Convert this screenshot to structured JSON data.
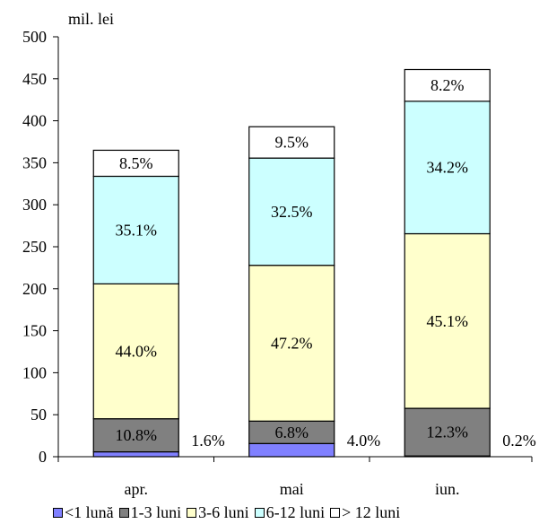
{
  "chart_data": {
    "type": "bar",
    "stacked": true,
    "unit_label": "mil. lei",
    "categories": [
      "apr.",
      "mai",
      "iun."
    ],
    "ylim": [
      0,
      500
    ],
    "yticks": [
      0,
      50,
      100,
      150,
      200,
      250,
      300,
      350,
      400,
      450,
      500
    ],
    "totals": [
      365,
      393,
      461
    ],
    "series": [
      {
        "name": "<1 lună",
        "color": "#8080ff",
        "values": [
          5.8,
          15.7,
          0.9
        ],
        "labels": [
          "1.6%",
          "4.0%",
          "0.2%"
        ],
        "label_position": "outside"
      },
      {
        "name": "1-3 luni",
        "color": "#808080",
        "values": [
          39.4,
          26.7,
          56.7
        ],
        "labels": [
          "10.8%",
          "6.8%",
          "12.3%"
        ]
      },
      {
        "name": "3-6 luni",
        "color": "#ffffcc",
        "values": [
          160.6,
          185.5,
          207.9
        ],
        "labels": [
          "44.0%",
          "47.2%",
          "45.1%"
        ]
      },
      {
        "name": "6-12 luni",
        "color": "#ccffff",
        "values": [
          128.1,
          127.7,
          157.7
        ],
        "labels": [
          "35.1%",
          "32.5%",
          "34.2%"
        ]
      },
      {
        "name": "> 12 luni",
        "color": "#ffffff",
        "values": [
          31.0,
          37.3,
          37.8
        ],
        "labels": [
          "8.5%",
          "9.5%",
          "8.2%"
        ]
      }
    ]
  },
  "legend": {
    "items": [
      {
        "label": "<1 lună",
        "color": "#8080ff"
      },
      {
        "label": "1-3 luni",
        "color": "#808080"
      },
      {
        "label": "3-6 luni",
        "color": "#ffffcc"
      },
      {
        "label": "6-12 luni",
        "color": "#ccffff"
      },
      {
        "label": "> 12 luni",
        "color": "#ffffff"
      }
    ]
  }
}
